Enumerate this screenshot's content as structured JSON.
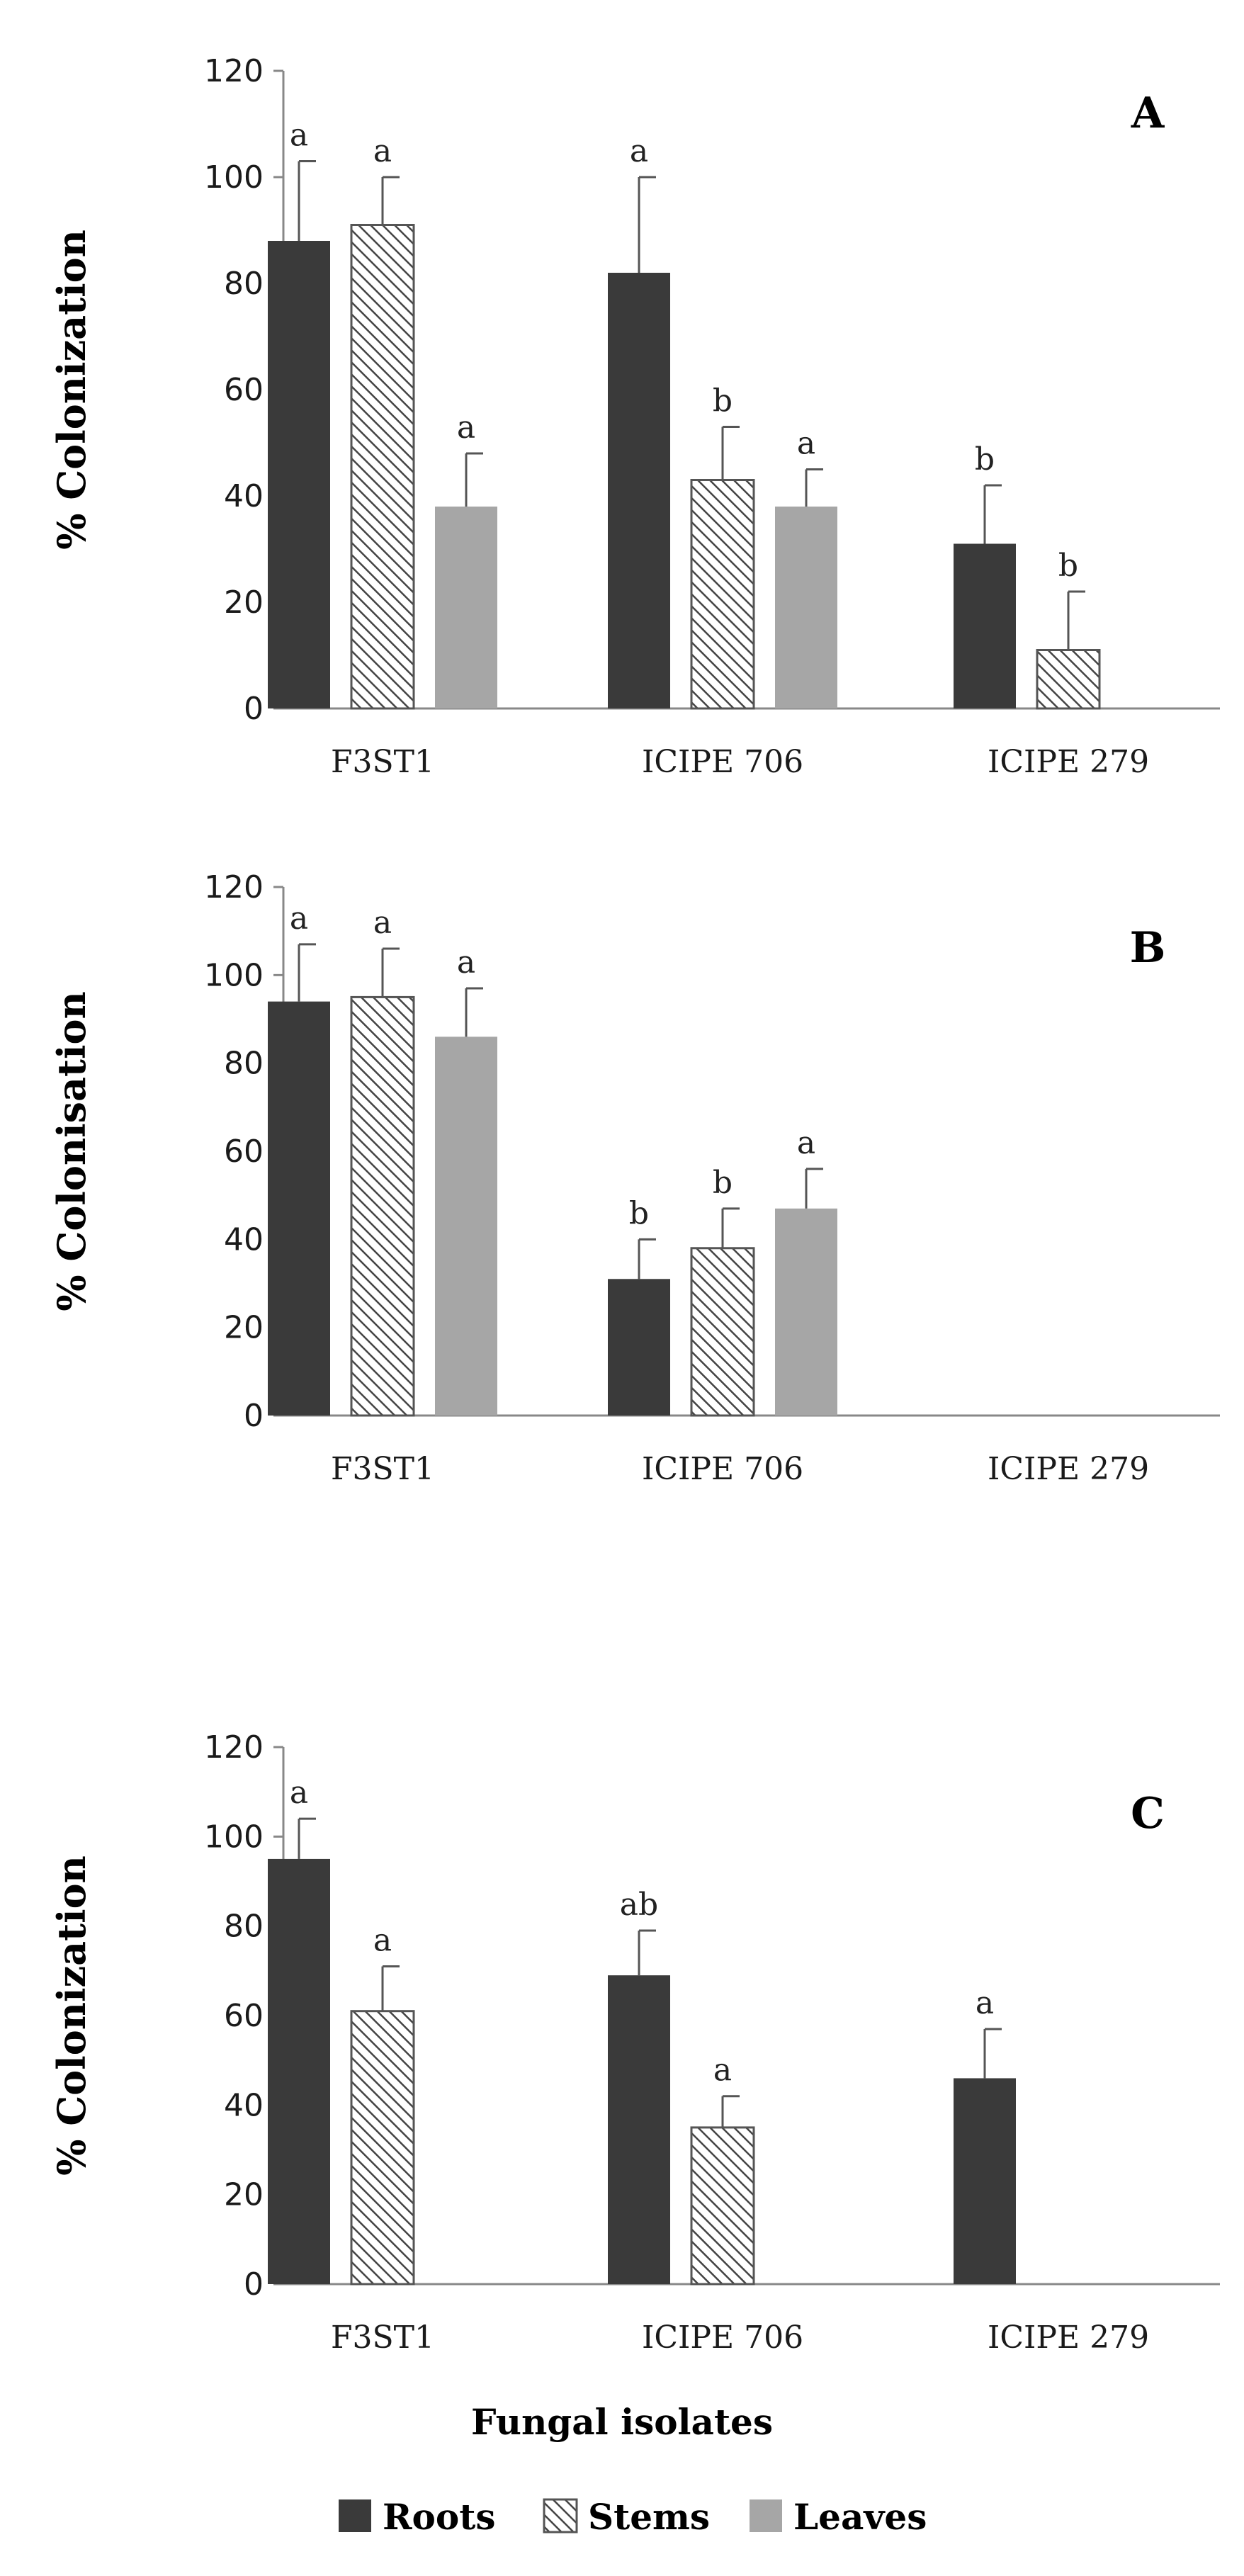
{
  "chart_data": [
    {
      "type": "bar",
      "panel": "A",
      "ylabel": "% Colonization",
      "ylim": [
        0,
        120
      ],
      "yticks": [
        0,
        20,
        40,
        60,
        80,
        100,
        120
      ],
      "categories": [
        "F3ST1",
        "ICIPE 706",
        "ICIPE 279"
      ],
      "series": [
        {
          "name": "Roots",
          "values": [
            88,
            82,
            31
          ],
          "errors": [
            15,
            18,
            11
          ],
          "letters": [
            "a",
            "a",
            "b"
          ]
        },
        {
          "name": "Stems",
          "values": [
            91,
            43,
            11
          ],
          "errors": [
            9,
            10,
            11
          ],
          "letters": [
            "a",
            "b",
            "b"
          ]
        },
        {
          "name": "Leaves",
          "values": [
            38,
            38,
            null
          ],
          "errors": [
            10,
            7,
            null
          ],
          "letters": [
            "a",
            "a",
            ""
          ]
        }
      ]
    },
    {
      "type": "bar",
      "panel": "B",
      "ylabel": "% Colonisation",
      "ylim": [
        0,
        120
      ],
      "yticks": [
        0,
        20,
        40,
        60,
        80,
        100,
        120
      ],
      "categories": [
        "F3ST1",
        "ICIPE 706",
        "ICIPE 279"
      ],
      "series": [
        {
          "name": "Roots",
          "values": [
            94,
            31,
            null
          ],
          "errors": [
            13,
            9,
            null
          ],
          "letters": [
            "a",
            "b",
            ""
          ]
        },
        {
          "name": "Stems",
          "values": [
            95,
            38,
            null
          ],
          "errors": [
            11,
            9,
            null
          ],
          "letters": [
            "a",
            "b",
            ""
          ]
        },
        {
          "name": "Leaves",
          "values": [
            86,
            47,
            null
          ],
          "errors": [
            11,
            9,
            null
          ],
          "letters": [
            "a",
            "a",
            ""
          ]
        }
      ]
    },
    {
      "type": "bar",
      "panel": "C",
      "ylabel": "% Colonization",
      "ylim": [
        0,
        120
      ],
      "yticks": [
        0,
        20,
        40,
        60,
        80,
        100,
        120
      ],
      "categories": [
        "F3ST1",
        "ICIPE 706",
        "ICIPE 279"
      ],
      "series": [
        {
          "name": "Roots",
          "values": [
            95,
            69,
            46
          ],
          "errors": [
            9,
            10,
            11
          ],
          "letters": [
            "a",
            "ab",
            "a"
          ]
        },
        {
          "name": "Stems",
          "values": [
            61,
            35,
            null
          ],
          "errors": [
            10,
            7,
            null
          ],
          "letters": [
            "a",
            "a",
            ""
          ]
        },
        {
          "name": "Leaves",
          "values": [
            null,
            null,
            null
          ],
          "errors": [
            null,
            null,
            null
          ],
          "letters": [
            "",
            "",
            ""
          ]
        }
      ]
    }
  ],
  "xlabel": "Fungal isolates",
  "legend": [
    {
      "name": "Roots",
      "color": "#3a3a3a",
      "pattern": "solid"
    },
    {
      "name": "Stems",
      "color": "#555555",
      "pattern": "hatch"
    },
    {
      "name": "Leaves",
      "color": "#a6a6a6",
      "pattern": "solid"
    }
  ],
  "colors": {
    "roots": "#3a3a3a",
    "leaves": "#a6a6a6",
    "axis": "#888888",
    "error": "#555555"
  }
}
